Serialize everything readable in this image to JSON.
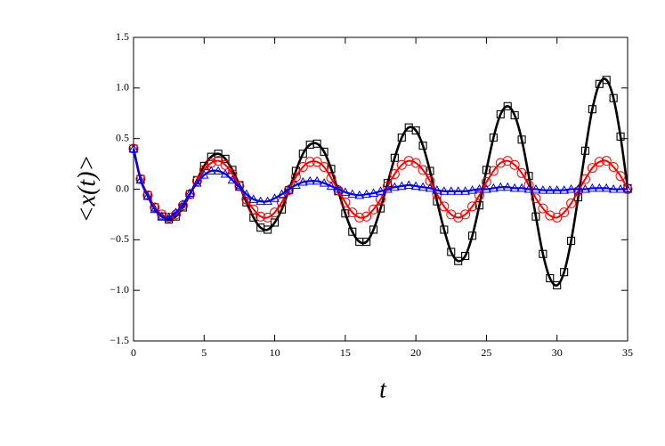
{
  "chart_data": {
    "type": "line",
    "x_label": "t",
    "y_label": "<x(t)>",
    "x": [
      0,
      0.5,
      1,
      1.5,
      2,
      2.5,
      3,
      3.5,
      4,
      4.5,
      5,
      5.5,
      6,
      6.5,
      7,
      7.5,
      8,
      8.5,
      9,
      9.5,
      10,
      10.5,
      11,
      11.5,
      12,
      12.5,
      13,
      13.5,
      14,
      14.5,
      15,
      15.5,
      16,
      16.5,
      17,
      17.5,
      18,
      18.5,
      19,
      19.5,
      20,
      20.5,
      21,
      21.5,
      22,
      22.5,
      23,
      23.5,
      24,
      24.5,
      25,
      25.5,
      26,
      26.5,
      27,
      27.5,
      28,
      28.5,
      29,
      29.5,
      30,
      30.5,
      31,
      31.5,
      32,
      32.5,
      33,
      33.5,
      34,
      34.5,
      35
    ],
    "series": [
      {
        "color": "#000000",
        "marker": "square",
        "width": 2.6,
        "values": [
          0.4,
          0.1,
          -0.06,
          -0.18,
          -0.27,
          -0.3,
          -0.27,
          -0.18,
          -0.05,
          0.09,
          0.23,
          0.32,
          0.35,
          0.3,
          0.19,
          0.04,
          -0.13,
          -0.28,
          -0.38,
          -0.4,
          -0.33,
          -0.2,
          -0.01,
          0.18,
          0.35,
          0.44,
          0.45,
          0.37,
          0.2,
          -0.02,
          -0.24,
          -0.42,
          -0.52,
          -0.52,
          -0.4,
          -0.19,
          0.06,
          0.31,
          0.51,
          0.61,
          0.58,
          0.43,
          0.18,
          -0.12,
          -0.4,
          -0.62,
          -0.71,
          -0.66,
          -0.46,
          -0.16,
          0.19,
          0.51,
          0.74,
          0.82,
          0.73,
          0.49,
          0.13,
          -0.27,
          -0.64,
          -0.88,
          -0.95,
          -0.82,
          -0.51,
          -0.08,
          0.38,
          0.79,
          1.04,
          1.08,
          0.9,
          0.52,
          0.01
        ]
      },
      {
        "color": "#ff0000",
        "marker": "circle",
        "width": 2,
        "values": [
          0.4,
          0.1,
          -0.06,
          -0.18,
          -0.25,
          -0.28,
          -0.25,
          -0.16,
          -0.05,
          0.08,
          0.19,
          0.26,
          0.28,
          0.24,
          0.15,
          0.03,
          -0.1,
          -0.2,
          -0.27,
          -0.28,
          -0.23,
          -0.13,
          -0.01,
          0.12,
          0.22,
          0.27,
          0.27,
          0.22,
          0.11,
          -0.01,
          -0.13,
          -0.23,
          -0.28,
          -0.27,
          -0.2,
          -0.1,
          0.03,
          0.15,
          0.24,
          0.28,
          0.26,
          0.19,
          0.08,
          -0.05,
          -0.17,
          -0.25,
          -0.28,
          -0.25,
          -0.17,
          -0.06,
          0.07,
          0.18,
          0.26,
          0.28,
          0.24,
          0.16,
          0.04,
          -0.09,
          -0.19,
          -0.26,
          -0.28,
          -0.23,
          -0.14,
          -0.02,
          0.1,
          0.21,
          0.27,
          0.28,
          0.22,
          0.13,
          0.0
        ]
      },
      {
        "color": "#0000ff",
        "marker": "triangle",
        "width": 2.2,
        "values": [
          0.4,
          0.09,
          -0.07,
          -0.2,
          -0.27,
          -0.28,
          -0.23,
          -0.15,
          -0.04,
          0.06,
          0.14,
          0.18,
          0.18,
          0.15,
          0.09,
          0.02,
          -0.05,
          -0.1,
          -0.12,
          -0.12,
          -0.09,
          -0.05,
          0.0,
          0.04,
          0.07,
          0.08,
          0.08,
          0.06,
          0.03,
          0.0,
          -0.03,
          -0.05,
          -0.06,
          -0.05,
          -0.04,
          -0.02,
          0.0,
          0.02,
          0.03,
          0.04,
          0.03,
          0.02,
          0.01,
          -0.01,
          -0.02,
          -0.02,
          -0.02,
          -0.02,
          -0.01,
          0.0,
          0.0,
          0.01,
          0.02,
          0.02,
          0.01,
          0.01,
          0.0,
          0.0,
          -0.01,
          -0.01,
          -0.01,
          -0.01,
          0.0,
          0.0,
          0.0,
          0.01,
          0.01,
          0.01,
          0.0,
          0.0,
          0.0
        ]
      }
    ],
    "xlim": [
      0,
      35
    ],
    "xticks": [
      0,
      5,
      10,
      15,
      20,
      25,
      30,
      35
    ],
    "ylim": [
      -1.5,
      1.5
    ],
    "yticks": [
      {
        "value": -1.5,
        "label": "−1.5"
      },
      {
        "value": -1,
        "label": "−1.0"
      },
      {
        "value": -0.5,
        "label": "−0.5"
      },
      {
        "value": 0,
        "label": "0.0"
      },
      0.5,
      {
        "value": 1,
        "label": "1.0"
      },
      1.5
    ]
  }
}
